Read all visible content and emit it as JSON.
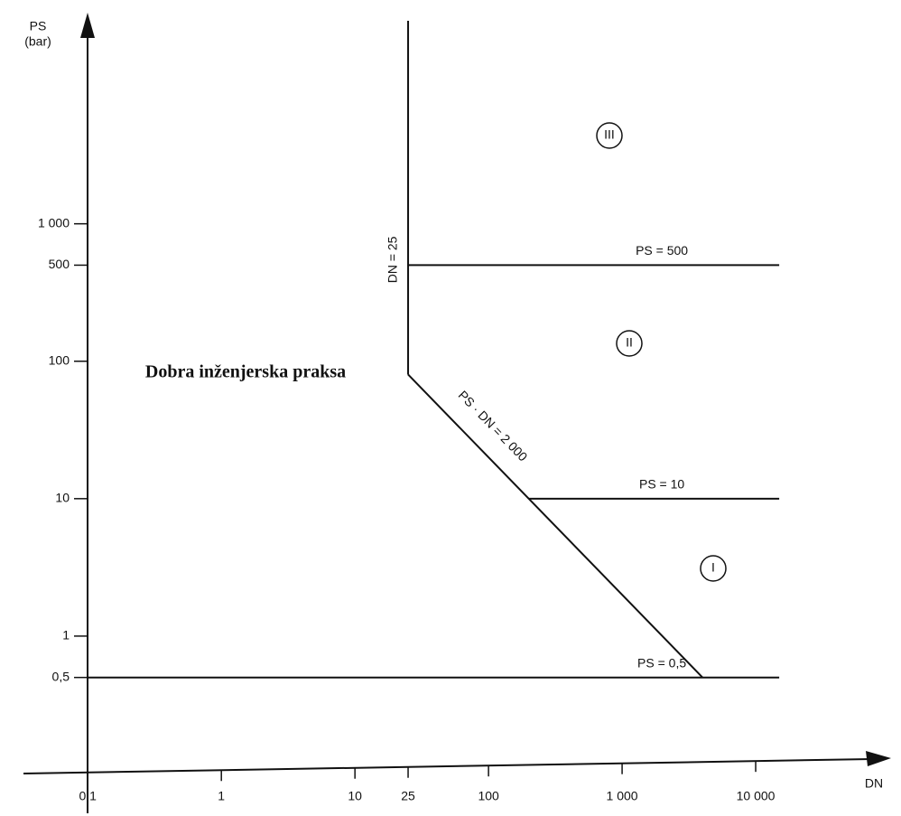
{
  "chart_data": {
    "type": "line",
    "y_label": "PS",
    "y_unit": "(bar)",
    "x_label": "DN",
    "log_x": true,
    "log_y": true,
    "grid": false,
    "xlim": [
      0.033,
      100000
    ],
    "ylim": [
      0.1,
      30000
    ],
    "xticks": [
      {
        "value": 0.1,
        "label": "0,1"
      },
      1,
      10,
      25,
      100,
      {
        "value": 1000,
        "label": "1 000"
      },
      {
        "value": 10000,
        "label": "10 000"
      }
    ],
    "yticks": [
      {
        "value": 0.5,
        "label": "0,5"
      },
      1,
      10,
      100,
      500,
      {
        "value": 1000,
        "label": "1 000"
      }
    ],
    "series": [
      {
        "name": "DN = 25",
        "color": "#111111",
        "x": [
          25,
          25
        ],
        "values": [
          80,
          30000
        ]
      },
      {
        "name": "PS · DN = 2 000",
        "color": "#111111",
        "x": [
          25,
          4000
        ],
        "values": [
          80,
          0.5
        ]
      },
      {
        "name": "PS = 500",
        "color": "#111111",
        "x": [
          25,
          15000
        ],
        "values": [
          500,
          500
        ]
      },
      {
        "name": "PS = 10",
        "color": "#111111",
        "x": [
          200,
          15000
        ],
        "values": [
          10,
          10
        ]
      },
      {
        "name": "PS = 0,5",
        "color": "#111111",
        "x": [
          0.1,
          15000
        ],
        "values": [
          0.5,
          0.5
        ]
      }
    ],
    "annotations": [
      "Dobra inženjerska praksa",
      "III",
      "II",
      "I"
    ]
  }
}
